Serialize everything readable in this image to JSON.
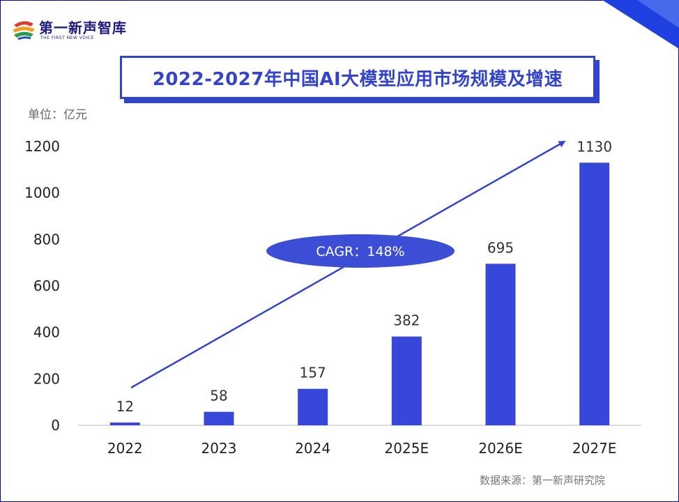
{
  "logo": {
    "name": "第一新声智库",
    "tagline": "THE FIRST NEW VOICE"
  },
  "header": {
    "title": "2022-2027年中国AI大模型应用市场规模及增速"
  },
  "unit_label": "单位：亿元",
  "source_label": "数据来源：第一新声研究院",
  "cagr_label": "CAGR：148%",
  "colors": {
    "bar": "#3747d9",
    "accent": "#3344cc",
    "ellipse": "#3d4ed6"
  },
  "chart_data": {
    "type": "bar",
    "title": "2022-2027年中国AI大模型应用市场规模及增速",
    "ylabel": "单位：亿元",
    "categories": [
      "2022",
      "2023",
      "2024",
      "2025E",
      "2026E",
      "2027E"
    ],
    "values": [
      12,
      58,
      157,
      382,
      695,
      1130
    ],
    "ylim": [
      0,
      1200
    ],
    "yticks": [
      0,
      200,
      400,
      600,
      800,
      1000,
      1200
    ],
    "grid": false,
    "annotation": "CAGR：148%"
  }
}
